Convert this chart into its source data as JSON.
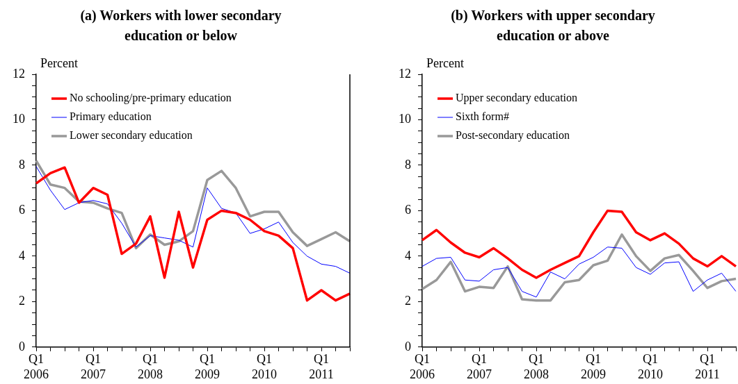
{
  "chart_data": [
    {
      "type": "line",
      "title": "(a) Workers with lower secondary education or below",
      "ylabel": "Percent",
      "legend": "top left",
      "grid": false,
      "ylim": [
        0,
        12
      ],
      "yticks": [
        0,
        {
          "value": 0.5,
          "label": null
        },
        {
          "value": 1,
          "label": null
        },
        {
          "value": 1.5,
          "label": null
        },
        2,
        {
          "value": 2.5,
          "label": null
        },
        {
          "value": 3,
          "label": null
        },
        {
          "value": 3.5,
          "label": null
        },
        4,
        {
          "value": 4.5,
          "label": null
        },
        {
          "value": 5,
          "label": null
        },
        {
          "value": 5.5,
          "label": null
        },
        6,
        {
          "value": 6.5,
          "label": null
        },
        {
          "value": 7,
          "label": null
        },
        {
          "value": 7.5,
          "label": null
        },
        8,
        {
          "value": 8.5,
          "label": null
        },
        {
          "value": 9,
          "label": null
        },
        {
          "value": 9.5,
          "label": null
        },
        10,
        {
          "value": 10.5,
          "label": null
        },
        {
          "value": 11,
          "label": null
        },
        {
          "value": 11.5,
          "label": null
        },
        12
      ],
      "categories": [
        "Q1 2006",
        null,
        null,
        null,
        "Q1 2007",
        null,
        null,
        null,
        "Q1 2008",
        null,
        null,
        null,
        "Q1 2009",
        null,
        null,
        null,
        "Q1 2010",
        null,
        null,
        null,
        "Q1 2011",
        null,
        null
      ],
      "series": [
        {
          "name": "No schooling/pre-primary education",
          "color": "#ff0000",
          "values": [
            7.2,
            7.65,
            7.9,
            6.35,
            7.0,
            6.7,
            4.1,
            4.55,
            5.75,
            3.05,
            5.95,
            3.5,
            5.6,
            6.0,
            5.9,
            5.6,
            5.1,
            4.9,
            4.35,
            2.05,
            2.5,
            2.05,
            2.35
          ]
        },
        {
          "name": "Primary education",
          "color": "#0000ff",
          "values": [
            7.95,
            6.9,
            6.05,
            6.35,
            6.45,
            6.3,
            5.45,
            4.4,
            4.9,
            4.8,
            4.7,
            4.4,
            7.0,
            6.1,
            5.9,
            5.0,
            5.2,
            5.5,
            4.6,
            4.0,
            3.65,
            3.55,
            3.25
          ]
        },
        {
          "name": "Lower secondary education",
          "color": "#999999",
          "values": [
            8.2,
            7.15,
            7.0,
            6.4,
            6.35,
            6.1,
            5.9,
            4.35,
            4.95,
            4.5,
            4.65,
            5.1,
            7.35,
            7.75,
            7.0,
            5.75,
            5.95,
            5.95,
            5.05,
            4.45,
            4.75,
            5.05,
            4.65
          ]
        }
      ]
    },
    {
      "type": "line",
      "title": "(b) Workers with upper secondary education or above",
      "ylabel": "Percent",
      "legend": "top left",
      "grid": false,
      "ylim": [
        0,
        12
      ],
      "yticks": [
        0,
        {
          "value": 0.5,
          "label": null
        },
        {
          "value": 1,
          "label": null
        },
        {
          "value": 1.5,
          "label": null
        },
        2,
        {
          "value": 2.5,
          "label": null
        },
        {
          "value": 3,
          "label": null
        },
        {
          "value": 3.5,
          "label": null
        },
        4,
        {
          "value": 4.5,
          "label": null
        },
        {
          "value": 5,
          "label": null
        },
        {
          "value": 5.5,
          "label": null
        },
        6,
        {
          "value": 6.5,
          "label": null
        },
        {
          "value": 7,
          "label": null
        },
        {
          "value": 7.5,
          "label": null
        },
        8,
        {
          "value": 8.5,
          "label": null
        },
        {
          "value": 9,
          "label": null
        },
        {
          "value": 9.5,
          "label": null
        },
        10,
        {
          "value": 10.5,
          "label": null
        },
        {
          "value": 11,
          "label": null
        },
        {
          "value": 11.5,
          "label": null
        },
        12
      ],
      "categories": [
        "Q1 2006",
        null,
        null,
        null,
        "Q1 2007",
        null,
        null,
        null,
        "Q1 2008",
        null,
        null,
        null,
        "Q1 2009",
        null,
        null,
        null,
        "Q1 2010",
        null,
        null,
        null,
        "Q1 2011",
        null,
        null
      ],
      "series": [
        {
          "name": "Upper secondary education",
          "color": "#ff0000",
          "values": [
            4.7,
            5.15,
            4.6,
            4.15,
            3.95,
            4.35,
            3.9,
            3.4,
            3.05,
            3.4,
            3.7,
            4.0,
            5.05,
            6.0,
            5.95,
            5.05,
            4.7,
            5.0,
            4.55,
            3.9,
            3.55,
            4.0,
            3.55
          ]
        },
        {
          "name": "Sixth form#",
          "color": "#0000ff",
          "values": [
            3.55,
            3.9,
            3.95,
            2.95,
            2.9,
            3.4,
            3.5,
            2.45,
            2.2,
            3.3,
            3.0,
            3.65,
            3.95,
            4.4,
            4.35,
            3.5,
            3.2,
            3.7,
            3.75,
            2.45,
            2.95,
            3.25,
            2.45
          ]
        },
        {
          "name": "Post-secondary education",
          "color": "#999999",
          "values": [
            2.55,
            2.95,
            3.75,
            2.45,
            2.65,
            2.6,
            3.55,
            2.1,
            2.05,
            2.05,
            2.85,
            2.95,
            3.6,
            3.8,
            4.95,
            4.0,
            3.35,
            3.9,
            4.05,
            3.35,
            2.6,
            2.9,
            3.0
          ]
        }
      ]
    }
  ]
}
